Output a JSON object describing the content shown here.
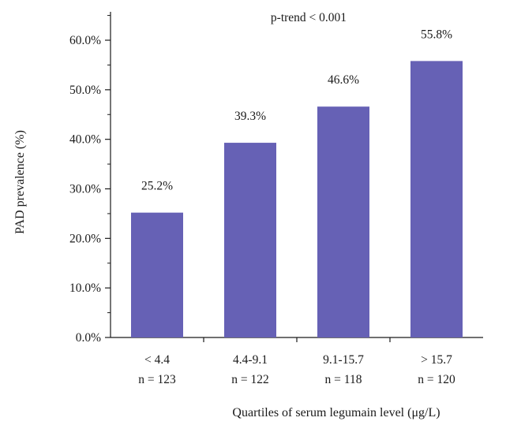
{
  "chart_data": {
    "type": "bar",
    "title": "",
    "annotation": "p-trend < 0.001",
    "xlabel": "Quartiles of serum legumain level (μg/L)",
    "ylabel": "PAD prevalence (%)",
    "ylim": [
      0,
      65
    ],
    "yticks": [
      {
        "value": 0,
        "label": "0.0%"
      },
      {
        "value": 10,
        "label": "10.0%"
      },
      {
        "value": 20,
        "label": "20.0%"
      },
      {
        "value": 30,
        "label": "30.0%"
      },
      {
        "value": 40,
        "label": "40.0%"
      },
      {
        "value": 50,
        "label": "50.0%"
      },
      {
        "value": 60,
        "label": "60.0%"
      }
    ],
    "categories": [
      "< 4.4",
      "4.4-9.1",
      "9.1-15.7",
      "> 15.7"
    ],
    "category_counts": [
      "n = 123",
      "n = 122",
      "n = 118",
      "n = 120"
    ],
    "values": [
      25.2,
      39.3,
      46.6,
      55.8
    ],
    "value_labels": [
      "25.2%",
      "39.3%",
      "46.6%",
      "55.8%"
    ],
    "bar_color": "#6661b5",
    "grid": false,
    "legend": "none"
  }
}
